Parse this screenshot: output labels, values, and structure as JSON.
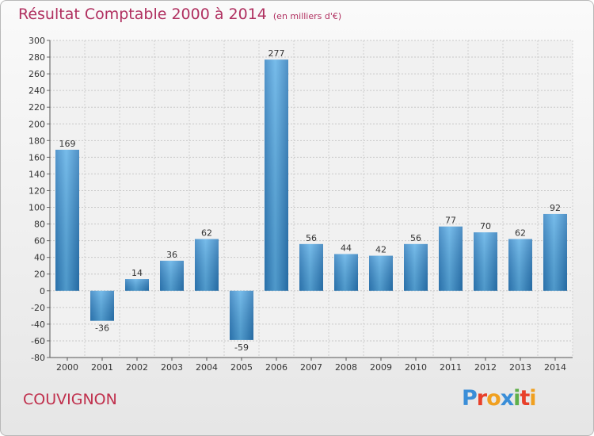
{
  "title": "Résultat Comptable 2000 à 2014",
  "subtitle": "(en milliers d'€)",
  "commune": "COUVIGNON",
  "logo": {
    "text": "Proxiti",
    "colors": [
      "#3a8ed8",
      "#e8402a",
      "#f0a020",
      "#3a8ed8",
      "#5fb04a",
      "#e8402a",
      "#f0a020"
    ]
  },
  "colors": {
    "bar": "#3a8fd0",
    "title": "#b03060"
  },
  "chart_data": {
    "type": "bar",
    "categories": [
      "2000",
      "2001",
      "2002",
      "2003",
      "2004",
      "2005",
      "2006",
      "2007",
      "2008",
      "2009",
      "2010",
      "2011",
      "2012",
      "2013",
      "2014"
    ],
    "values": [
      169,
      -36,
      14,
      36,
      62,
      -59,
      277,
      56,
      44,
      42,
      56,
      77,
      70,
      62,
      92
    ],
    "ylim": [
      -80,
      300
    ],
    "yticks": [
      -80,
      -60,
      -40,
      -20,
      0,
      20,
      40,
      60,
      80,
      100,
      120,
      140,
      160,
      180,
      200,
      220,
      240,
      260,
      280,
      300
    ],
    "grid": true,
    "legend": "none"
  }
}
